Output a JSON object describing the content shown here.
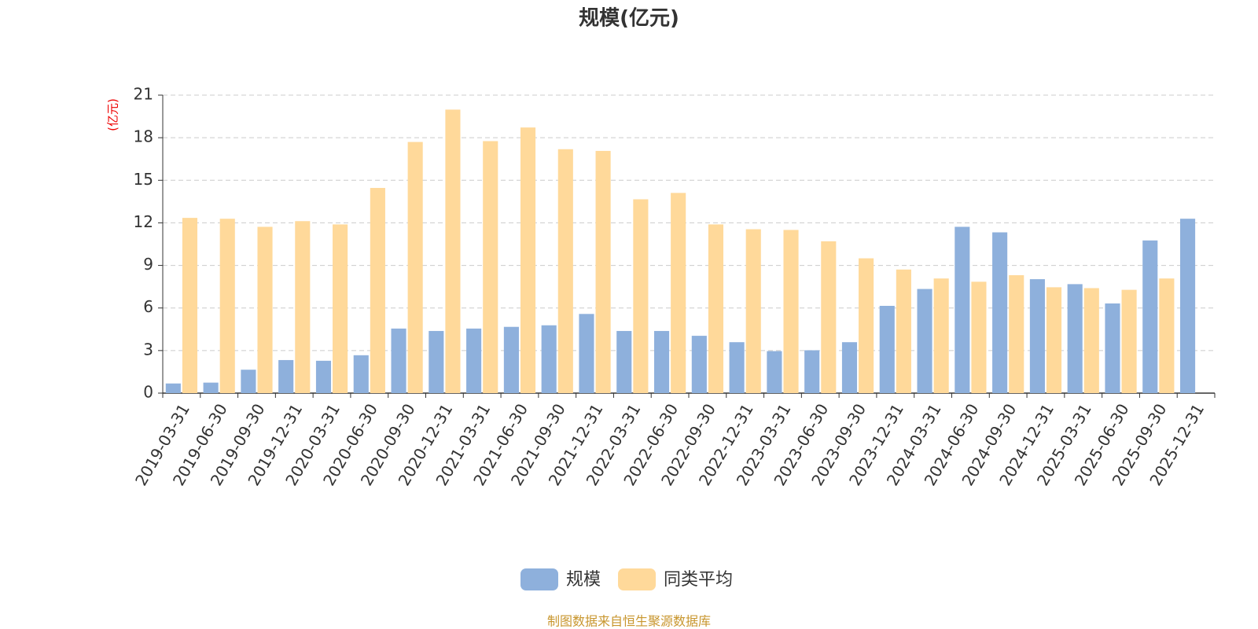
{
  "chart_data": {
    "type": "bar",
    "title": "规模(亿元)",
    "y_unit_label": "(亿元)",
    "source": "制图数据来自恒生聚源数据库",
    "categories": [
      "2019-03-31",
      "2019-06-30",
      "2019-09-30",
      "2019-12-31",
      "2020-03-31",
      "2020-06-30",
      "2020-09-30",
      "2020-12-31",
      "2021-03-31",
      "2021-06-30",
      "2021-09-30",
      "2021-12-31",
      "2022-03-31",
      "2022-06-30",
      "2022-09-30",
      "2022-12-31",
      "2023-03-31",
      "2023-06-30",
      "2023-09-30",
      "2023-12-31",
      "2024-03-31",
      "2024-06-30",
      "2024-09-30",
      "2024-12-31",
      "2025-03-31",
      "2025-06-30",
      "2025-09-30",
      "2025-12-31"
    ],
    "series": [
      {
        "name": "规模",
        "color": "#8eb0dc",
        "values": [
          0.68,
          0.74,
          1.65,
          2.33,
          2.28,
          2.67,
          4.55,
          4.38,
          4.55,
          4.67,
          4.78,
          5.58,
          4.38,
          4.38,
          4.04,
          3.59,
          2.96,
          3.02,
          3.59,
          6.15,
          7.34,
          11.72,
          11.33,
          8.03,
          7.68,
          6.32,
          10.76,
          12.29
        ]
      },
      {
        "name": "同类平均",
        "color": "#ffd99a",
        "values": [
          12.35,
          12.29,
          11.72,
          12.12,
          11.89,
          14.46,
          17.7,
          19.98,
          17.76,
          18.72,
          17.19,
          17.07,
          13.66,
          14.11,
          11.89,
          11.55,
          11.5,
          10.7,
          9.5,
          8.71,
          8.08,
          7.85,
          8.31,
          7.46,
          7.4,
          7.28,
          8.08,
          null
        ]
      }
    ],
    "ylim": [
      0,
      21
    ],
    "yticks": [
      0,
      3,
      6,
      9,
      12,
      15,
      18,
      21
    ],
    "grid": true,
    "legend": "bottom"
  }
}
